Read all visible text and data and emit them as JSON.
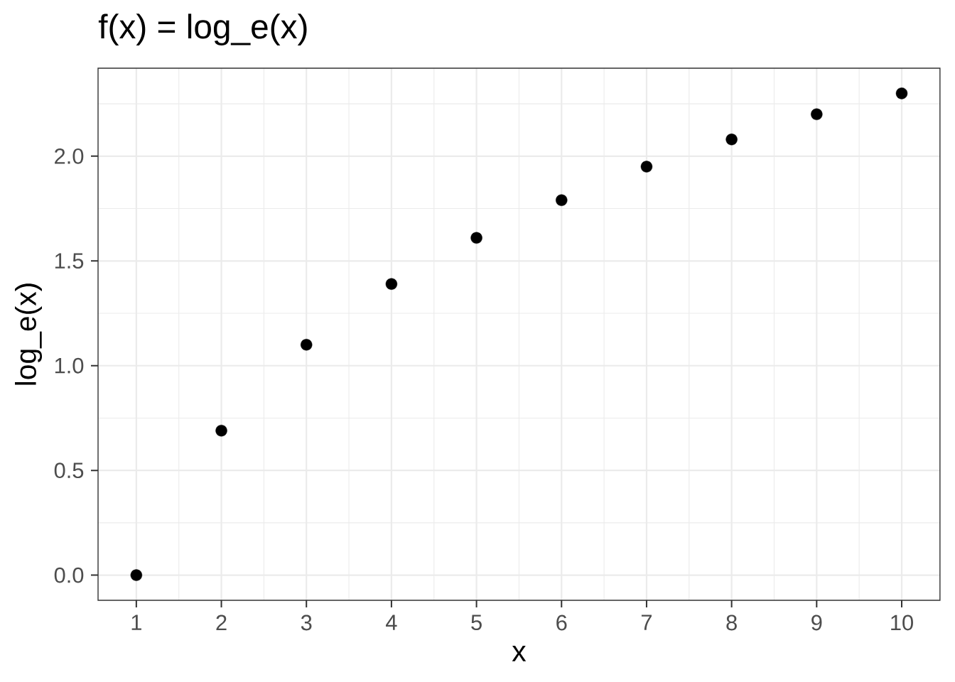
{
  "chart_data": {
    "type": "scatter",
    "title": "f(x) = log_e(x)",
    "xlabel": "x",
    "ylabel": "log_e(x)",
    "x": [
      1,
      2,
      3,
      4,
      5,
      6,
      7,
      8,
      9,
      10
    ],
    "values": [
      0,
      0.69,
      1.1,
      1.39,
      1.61,
      1.79,
      1.95,
      2.08,
      2.2,
      2.3
    ],
    "color": "#000000",
    "marker": "circle",
    "grid": true,
    "xlim": [
      0.55,
      10.45
    ],
    "ylim": [
      -0.12,
      2.42
    ],
    "xticks": [
      1,
      2,
      3,
      4,
      5,
      6,
      7,
      8,
      9,
      10
    ],
    "yticks": [
      {
        "value": 0,
        "label": "0.0"
      },
      {
        "value": 0.5,
        "label": "0.5"
      },
      {
        "value": 1,
        "label": "1.0"
      },
      {
        "value": 1.5,
        "label": "1.5"
      },
      {
        "value": 2,
        "label": "2.0"
      }
    ]
  }
}
